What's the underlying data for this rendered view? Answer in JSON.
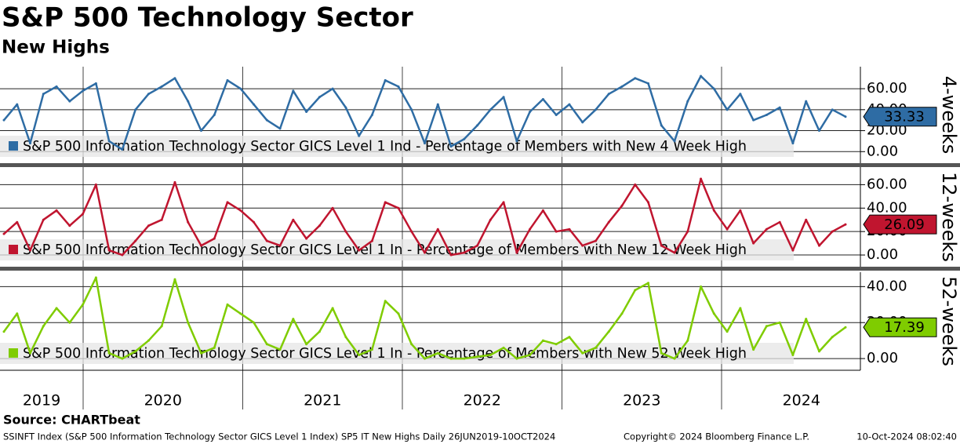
{
  "header": {
    "title": "S&P 500 Technology Sector",
    "subtitle": "New Highs"
  },
  "x_axis": {
    "categories": [
      "2019",
      "2020",
      "2021",
      "2022",
      "2023",
      "2024"
    ]
  },
  "chart_data": [
    {
      "type": "line",
      "y_label": "4-weeks",
      "ylim": [
        -11,
        81
      ],
      "yticks": [
        {
          "value": 0,
          "label": "0.00"
        },
        {
          "value": 20,
          "label": "20.00"
        },
        {
          "value": 40,
          "label": "40.00"
        },
        {
          "value": 60,
          "label": "60.00"
        }
      ],
      "grid": true,
      "series": [
        {
          "name": "S&P 500 Information Technology Sector GICS Level 1 Ind - Percentage of Members with New 4 Week High",
          "color": "#2e6ca4",
          "label_color": "#ffffff",
          "values": [
            30,
            45,
            8,
            55,
            62,
            48,
            58,
            65,
            10,
            2,
            40,
            55,
            62,
            70,
            48,
            20,
            35,
            68,
            60,
            45,
            30,
            22,
            58,
            38,
            52,
            60,
            42,
            15,
            35,
            68,
            62,
            40,
            8,
            45,
            5,
            12,
            25,
            40,
            52,
            10,
            38,
            50,
            35,
            45,
            28,
            40,
            55,
            62,
            70,
            65,
            25,
            10,
            48,
            72,
            60,
            40,
            55,
            30,
            35,
            42,
            8,
            48,
            20,
            40,
            33.33
          ]
        }
      ]
    },
    {
      "type": "line",
      "y_label": "12-weeks",
      "ylim": [
        -10,
        75
      ],
      "yticks": [
        {
          "value": 0,
          "label": "0.00"
        },
        {
          "value": 20,
          "label": "20.00"
        },
        {
          "value": 40,
          "label": "40.00"
        },
        {
          "value": 60,
          "label": "60.00"
        }
      ],
      "grid": true,
      "series": [
        {
          "name": "S&P 500 Information Technology Sector GICS Level 1 In - Percentage of Members with New 12 Week High",
          "color": "#c0152f",
          "label_color": "#ffffff",
          "values": [
            18,
            28,
            4,
            30,
            38,
            25,
            35,
            60,
            4,
            0,
            12,
            25,
            30,
            62,
            28,
            8,
            14,
            45,
            38,
            28,
            12,
            8,
            30,
            14,
            25,
            40,
            20,
            4,
            12,
            45,
            40,
            20,
            2,
            22,
            0,
            2,
            8,
            30,
            45,
            2,
            22,
            38,
            20,
            22,
            8,
            12,
            28,
            42,
            60,
            45,
            8,
            2,
            20,
            65,
            38,
            22,
            38,
            10,
            22,
            28,
            4,
            30,
            8,
            20,
            26.09
          ]
        }
      ]
    },
    {
      "type": "line",
      "y_label": "52-weeks",
      "ylim": [
        -6.5,
        48
      ],
      "yticks": [
        {
          "value": 0,
          "label": "0.00"
        },
        {
          "value": 20,
          "label": "20.00"
        },
        {
          "value": 40,
          "label": "40.00"
        }
      ],
      "grid": true,
      "series": [
        {
          "name": "S&P 500 Information Technology Sector GICS Level 1 In - Percentage of Members with New 52 Week High",
          "color": "#7fcc00",
          "label_color": "#000000",
          "values": [
            15,
            25,
            3,
            18,
            28,
            20,
            30,
            45,
            3,
            0,
            4,
            10,
            18,
            44,
            20,
            3,
            6,
            30,
            25,
            20,
            8,
            5,
            22,
            8,
            15,
            28,
            12,
            2,
            5,
            32,
            25,
            8,
            0,
            3,
            0,
            0,
            1,
            2,
            6,
            0,
            2,
            10,
            8,
            12,
            3,
            6,
            15,
            25,
            38,
            42,
            3,
            0,
            10,
            40,
            25,
            15,
            28,
            5,
            18,
            20,
            2,
            22,
            4,
            12,
            17.39
          ]
        }
      ]
    }
  ],
  "footer": {
    "source": "Source: CHARTbeat",
    "description": "SSINFT Index (S&P 500 Information Technology Sector GICS Level 1 Index) SP5 IT New Highs  Daily 26JUN2019-10OCT2024",
    "copyright": "Copyright© 2024 Bloomberg Finance L.P.",
    "timestamp": "10-Oct-2024 08:02:40"
  }
}
